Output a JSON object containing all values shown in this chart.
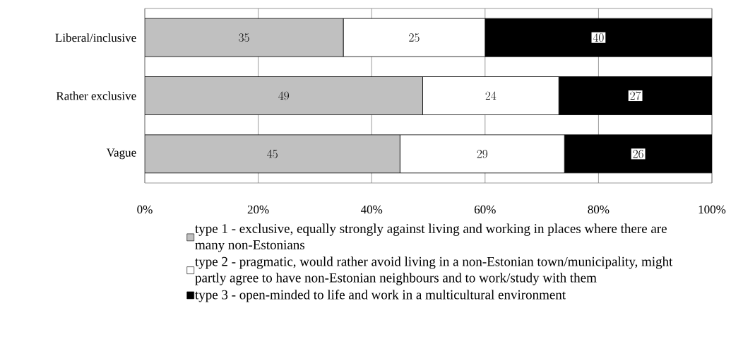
{
  "chart_data": {
    "type": "bar",
    "orientation": "horizontal",
    "stacked": true,
    "data_labels": true,
    "grid": "x",
    "legend": "bottom",
    "categories": [
      "Liberal/inclusive",
      "Rather exclusive",
      "Vague"
    ],
    "xlim": [
      0,
      100
    ],
    "xticks": [
      {
        "value": 0,
        "label": "0%"
      },
      {
        "value": 20,
        "label": "20%"
      },
      {
        "value": 40,
        "label": "40%"
      },
      {
        "value": 60,
        "label": "60%"
      },
      {
        "value": 80,
        "label": "80%"
      },
      {
        "value": 100,
        "label": "100%"
      }
    ],
    "series": [
      {
        "name": "type 1 - exclusive, equally strongly against living and working in places where there are many non-Estonians",
        "color": "#c0c0c0",
        "values": [
          35,
          49,
          45
        ]
      },
      {
        "name": "type 2 - pragmatic, would rather avoid living in a non-Estonian town/municipality, might partly agree to have non-Estonian neighbours and to work/study with them",
        "color": "#ffffff",
        "values": [
          25,
          24,
          29
        ]
      },
      {
        "name": "type 3 - open-minded to life and work in a multicultural environment",
        "color": "#000000",
        "values": [
          40,
          27,
          26
        ]
      }
    ]
  }
}
